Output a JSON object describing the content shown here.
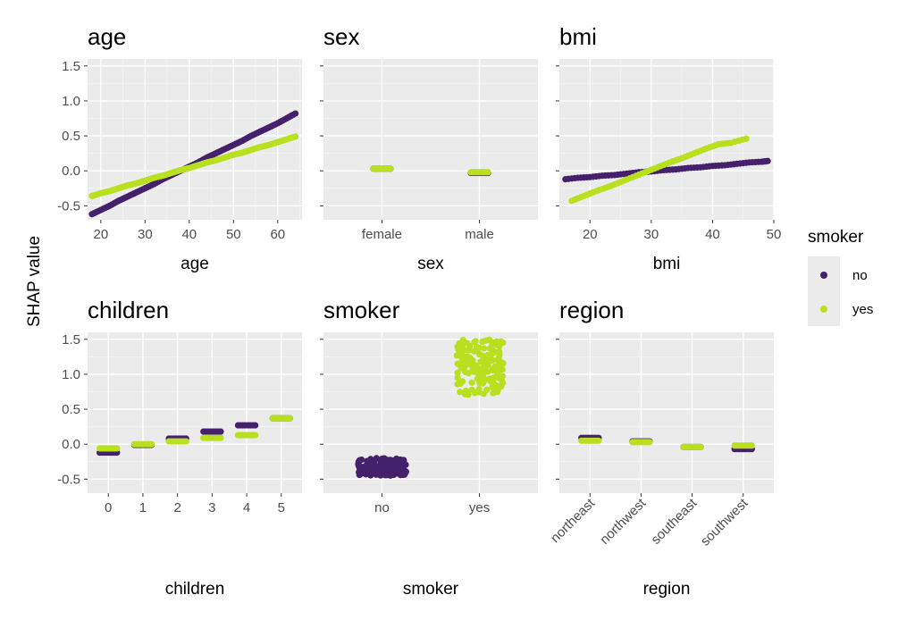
{
  "figure": {
    "ylabel": "SHAP value",
    "colors": {
      "no": "#45206b",
      "yes": "#b8e01f"
    }
  },
  "legend": {
    "title": "smoker",
    "entries": [
      {
        "label": "no",
        "color": "#45206b"
      },
      {
        "label": "yes",
        "color": "#b8e01f"
      }
    ]
  },
  "chart_data": [
    {
      "type": "scatter",
      "title": "age",
      "xlabel": "age",
      "ylabel": "SHAP value",
      "xlim": [
        17,
        65.5
      ],
      "ylim": [
        -0.7,
        1.6
      ],
      "x_ticks": [
        20,
        30,
        40,
        50,
        60
      ],
      "y_ticks": [
        -0.5,
        0.0,
        0.5,
        1.0,
        1.5
      ],
      "y_tick_labels": [
        "-0.5",
        "0.0",
        "0.5",
        "1.0",
        "1.5"
      ],
      "series": [
        {
          "name": "no",
          "x": [
            18,
            20,
            22,
            24,
            26,
            28,
            30,
            32,
            34,
            36,
            38,
            40,
            42,
            44,
            46,
            48,
            50,
            52,
            54,
            56,
            58,
            60,
            62,
            64
          ],
          "y": [
            -0.62,
            -0.56,
            -0.5,
            -0.43,
            -0.37,
            -0.31,
            -0.25,
            -0.19,
            -0.12,
            -0.06,
            0.0,
            0.06,
            0.12,
            0.19,
            0.25,
            0.31,
            0.37,
            0.43,
            0.5,
            0.56,
            0.62,
            0.68,
            0.75,
            0.82
          ]
        },
        {
          "name": "yes",
          "x": [
            18,
            20,
            22,
            24,
            26,
            28,
            30,
            32,
            34,
            36,
            38,
            40,
            42,
            44,
            46,
            48,
            50,
            52,
            54,
            56,
            58,
            60,
            62,
            64
          ],
          "y": [
            -0.36,
            -0.32,
            -0.29,
            -0.25,
            -0.21,
            -0.18,
            -0.14,
            -0.1,
            -0.07,
            -0.03,
            0.01,
            0.04,
            0.08,
            0.12,
            0.15,
            0.19,
            0.23,
            0.26,
            0.3,
            0.34,
            0.37,
            0.41,
            0.45,
            0.49
          ]
        }
      ]
    },
    {
      "type": "scatter",
      "title": "sex",
      "xlabel": "sex",
      "ylabel": "SHAP value",
      "categories": [
        "female",
        "male"
      ],
      "ylim": [
        -0.7,
        1.6
      ],
      "y_ticks": [
        -0.5,
        0.0,
        0.5,
        1.0,
        1.5
      ],
      "series": [
        {
          "name": "no",
          "category_values": {
            "female": [
              0.03
            ],
            "male": [
              -0.03
            ]
          }
        },
        {
          "name": "yes",
          "category_values": {
            "female": [
              0.03
            ],
            "male": [
              -0.02
            ]
          }
        }
      ]
    },
    {
      "type": "scatter",
      "title": "bmi",
      "xlabel": "bmi",
      "ylabel": "SHAP value",
      "xlim": [
        15,
        50
      ],
      "ylim": [
        -0.7,
        1.6
      ],
      "x_ticks": [
        20,
        30,
        40,
        50
      ],
      "y_ticks": [
        -0.5,
        0.0,
        0.5,
        1.0,
        1.5
      ],
      "series": [
        {
          "name": "no",
          "x": [
            16,
            18,
            20,
            22,
            24,
            26,
            28,
            30,
            32,
            34,
            36,
            38,
            40,
            42,
            44,
            46,
            48,
            49
          ],
          "y": [
            -0.12,
            -0.1,
            -0.09,
            -0.07,
            -0.06,
            -0.04,
            -0.02,
            -0.01,
            0.01,
            0.02,
            0.04,
            0.05,
            0.07,
            0.08,
            0.1,
            0.12,
            0.13,
            0.14
          ]
        },
        {
          "name": "yes",
          "x": [
            17,
            19,
            21,
            23,
            25,
            27,
            29,
            31,
            33,
            35,
            37,
            39,
            41,
            43,
            45.5
          ],
          "y": [
            -0.43,
            -0.36,
            -0.29,
            -0.23,
            -0.16,
            -0.09,
            -0.02,
            0.05,
            0.12,
            0.18,
            0.25,
            0.32,
            0.38,
            0.4,
            0.46
          ]
        }
      ]
    },
    {
      "type": "scatter",
      "title": "children",
      "xlabel": "children",
      "ylabel": "SHAP value",
      "categories": [
        "0",
        "1",
        "2",
        "3",
        "4",
        "5"
      ],
      "ylim": [
        -0.7,
        1.6
      ],
      "y_ticks": [
        -0.5,
        0.0,
        0.5,
        1.0,
        1.5
      ],
      "y_tick_labels": [
        "-0.5",
        "0.0",
        "0.5",
        "1.0",
        "1.5"
      ],
      "series": [
        {
          "name": "no",
          "category_values": {
            "0": [
              -0.12
            ],
            "1": [
              -0.01
            ],
            "2": [
              0.08
            ],
            "3": [
              0.18
            ],
            "4": [
              0.27
            ],
            "5": [
              0.37
            ]
          }
        },
        {
          "name": "yes",
          "category_values": {
            "0": [
              -0.06
            ],
            "1": [
              0.0
            ],
            "2": [
              0.04
            ],
            "3": [
              0.09
            ],
            "4": [
              0.13
            ],
            "5": [
              0.37
            ]
          }
        }
      ]
    },
    {
      "type": "scatter",
      "title": "smoker",
      "xlabel": "smoker",
      "ylabel": "SHAP value",
      "categories": [
        "no",
        "yes"
      ],
      "ylim": [
        -0.7,
        1.6
      ],
      "y_ticks": [
        -0.5,
        0.0,
        0.5,
        1.0,
        1.5
      ],
      "series": [
        {
          "name": "no",
          "category_range": {
            "no": [
              -0.45,
              -0.2
            ]
          }
        },
        {
          "name": "yes",
          "category_range": {
            "yes": [
              0.7,
              1.5
            ]
          }
        }
      ]
    },
    {
      "type": "scatter",
      "title": "region",
      "xlabel": "region",
      "ylabel": "SHAP value",
      "categories": [
        "northeast",
        "northwest",
        "southeast",
        "southwest"
      ],
      "ylim": [
        -0.7,
        1.6
      ],
      "y_ticks": [
        -0.5,
        0.0,
        0.5,
        1.0,
        1.5
      ],
      "series": [
        {
          "name": "no",
          "category_values": {
            "northeast": [
              0.09
            ],
            "northwest": [
              0.04
            ],
            "southeast": [
              -0.04
            ],
            "southwest": [
              -0.07
            ]
          }
        },
        {
          "name": "yes",
          "category_values": {
            "northeast": [
              0.05
            ],
            "northwest": [
              0.03
            ],
            "southeast": [
              -0.04
            ],
            "southwest": [
              -0.02
            ]
          }
        }
      ]
    }
  ]
}
